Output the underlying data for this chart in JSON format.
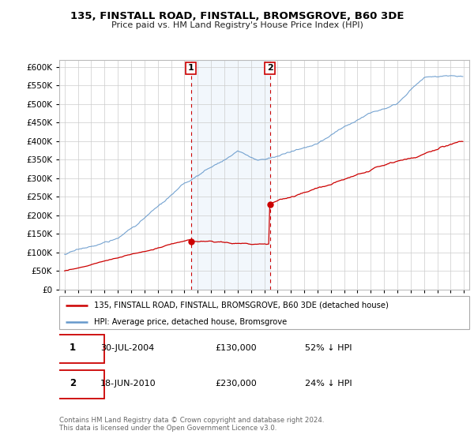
{
  "title": "135, FINSTALL ROAD, FINSTALL, BROMSGROVE, B60 3DE",
  "subtitle": "Price paid vs. HM Land Registry's House Price Index (HPI)",
  "property_label": "135, FINSTALL ROAD, FINSTALL, BROMSGROVE, B60 3DE (detached house)",
  "hpi_label": "HPI: Average price, detached house, Bromsgrove",
  "property_color": "#cc0000",
  "hpi_color": "#6699cc",
  "highlight_bg": "#ddeeff",
  "sale1_date": "30-JUL-2004",
  "sale1_price": 130000,
  "sale1_hpi": "52% ↓ HPI",
  "sale2_date": "18-JUN-2010",
  "sale2_price": 230000,
  "sale2_hpi": "24% ↓ HPI",
  "footer": "Contains HM Land Registry data © Crown copyright and database right 2024.\nThis data is licensed under the Open Government Licence v3.0.",
  "ylim": [
    0,
    620000
  ],
  "yticks": [
    0,
    50000,
    100000,
    150000,
    200000,
    250000,
    300000,
    350000,
    400000,
    450000,
    500000,
    550000,
    600000
  ],
  "year_start": 1995,
  "year_end": 2025
}
